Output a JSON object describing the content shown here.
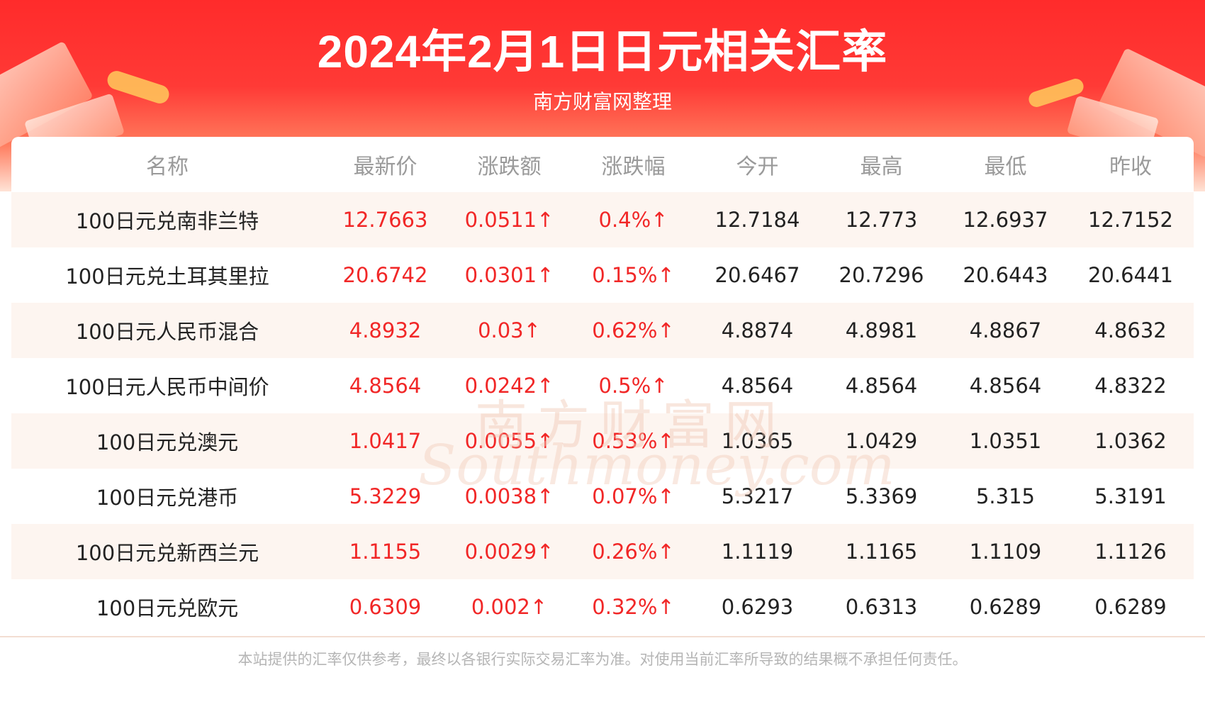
{
  "header": {
    "title": "2024年2月1日日元相关汇率",
    "subtitle": "南方财富网整理"
  },
  "table": {
    "columns": [
      "名称",
      "最新价",
      "涨跌额",
      "涨跌幅",
      "今开",
      "最高",
      "最低",
      "昨收"
    ],
    "rows": [
      {
        "name": "100日元兑南非兰特",
        "latest": "12.7663",
        "change": "0.0511↑",
        "pct": "0.4%↑",
        "open": "12.7184",
        "high": "12.773",
        "low": "12.6937",
        "prev": "12.7152"
      },
      {
        "name": "100日元兑土耳其里拉",
        "latest": "20.6742",
        "change": "0.0301↑",
        "pct": "0.15%↑",
        "open": "20.6467",
        "high": "20.7296",
        "low": "20.6443",
        "prev": "20.6441"
      },
      {
        "name": "100日元人民币混合",
        "latest": "4.8932",
        "change": "0.03↑",
        "pct": "0.62%↑",
        "open": "4.8874",
        "high": "4.8981",
        "low": "4.8867",
        "prev": "4.8632"
      },
      {
        "name": "100日元人民币中间价",
        "latest": "4.8564",
        "change": "0.0242↑",
        "pct": "0.5%↑",
        "open": "4.8564",
        "high": "4.8564",
        "low": "4.8564",
        "prev": "4.8322"
      },
      {
        "name": "100日元兑澳元",
        "latest": "1.0417",
        "change": "0.0055↑",
        "pct": "0.53%↑",
        "open": "1.0365",
        "high": "1.0429",
        "low": "1.0351",
        "prev": "1.0362"
      },
      {
        "name": "100日元兑港币",
        "latest": "5.3229",
        "change": "0.0038↑",
        "pct": "0.07%↑",
        "open": "5.3217",
        "high": "5.3369",
        "low": "5.315",
        "prev": "5.3191"
      },
      {
        "name": "100日元兑新西兰元",
        "latest": "1.1155",
        "change": "0.0029↑",
        "pct": "0.26%↑",
        "open": "1.1119",
        "high": "1.1165",
        "low": "1.1109",
        "prev": "1.1126"
      },
      {
        "name": "100日元兑欧元",
        "latest": "0.6309",
        "change": "0.002↑",
        "pct": "0.32%↑",
        "open": "0.6293",
        "high": "0.6313",
        "low": "0.6289",
        "prev": "0.6289"
      }
    ]
  },
  "watermark": {
    "cn": "南方财富网",
    "en": "Southmoney.com"
  },
  "footer": {
    "disclaimer": "本站提供的汇率仅供参考，最终以各银行实际交易汇率为准。对使用当前汇率所导致的结果概不承担任何责任。"
  },
  "colors": {
    "banner_red": "#ff2b2b",
    "up_red": "#f12727",
    "stripe": "#fdf5f0"
  }
}
